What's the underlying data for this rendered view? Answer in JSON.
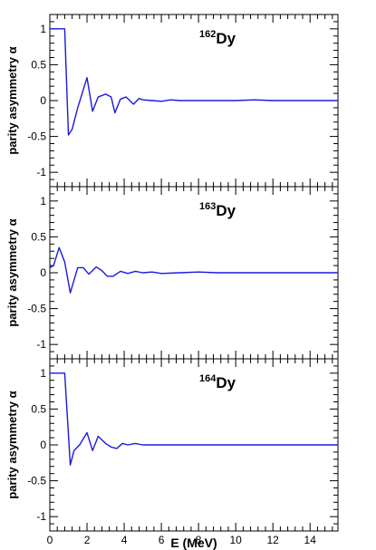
{
  "chart_data": [
    {
      "type": "line",
      "annotation": {
        "mass": "162",
        "symbol": "Dy"
      },
      "ylabel": "parity asymmetry α",
      "xlim": [
        0,
        15.5
      ],
      "ylim": [
        -1.2,
        1.2
      ],
      "yticks": [
        "1",
        "0.5",
        "0",
        "-0.5",
        "-1"
      ],
      "color": "#1a1adc",
      "x": [
        0,
        0.4,
        0.8,
        1.0,
        1.2,
        1.5,
        2.0,
        2.3,
        2.6,
        3.0,
        3.3,
        3.5,
        3.8,
        4.1,
        4.5,
        4.8,
        5.0,
        5.5,
        6.0,
        6.5,
        7.0,
        8.0,
        9.0,
        10.0,
        11.0,
        12.0,
        13.0,
        14.0,
        15.5
      ],
      "y": [
        1.0,
        1.0,
        1.0,
        -0.48,
        -0.4,
        -0.1,
        0.32,
        -0.15,
        0.05,
        0.09,
        0.05,
        -0.17,
        0.02,
        0.05,
        -0.05,
        0.03,
        0.01,
        0.0,
        -0.01,
        0.01,
        0.0,
        0.0,
        0.0,
        0.0,
        0.01,
        0.0,
        0.0,
        0.0,
        0.0
      ]
    },
    {
      "type": "line",
      "annotation": {
        "mass": "163",
        "symbol": "Dy"
      },
      "ylabel": "parity asymmetry α",
      "xlim": [
        0,
        15.5
      ],
      "ylim": [
        -1.2,
        1.2
      ],
      "yticks": [
        "1",
        "0.5",
        "0",
        "-0.5",
        "-1"
      ],
      "color": "#1a1adc",
      "x": [
        0,
        0.2,
        0.5,
        0.8,
        1.1,
        1.5,
        1.8,
        2.1,
        2.5,
        2.8,
        3.1,
        3.4,
        3.8,
        4.2,
        4.6,
        5.0,
        5.5,
        6.0,
        7.0,
        8.0,
        9.0,
        10.0,
        11.0,
        12.0,
        13.0,
        14.0,
        15.5
      ],
      "y": [
        0.07,
        0.1,
        0.35,
        0.15,
        -0.28,
        0.07,
        0.07,
        -0.02,
        0.08,
        0.03,
        -0.05,
        -0.05,
        0.02,
        -0.01,
        0.02,
        0.0,
        0.01,
        -0.01,
        0.0,
        0.01,
        0.0,
        0.0,
        0.0,
        0.0,
        0.0,
        0.0,
        0.0
      ]
    },
    {
      "type": "line",
      "annotation": {
        "mass": "164",
        "symbol": "Dy"
      },
      "ylabel": "parity asymmetry α",
      "xlabel": "E (MeV)",
      "xlim": [
        0,
        15.5
      ],
      "ylim": [
        -1.2,
        1.2
      ],
      "yticks": [
        "1",
        "0.5",
        "0",
        "-0.5",
        "-1"
      ],
      "xticks": [
        "0",
        "2",
        "4",
        "6",
        "8",
        "10",
        "12",
        "14"
      ],
      "color": "#1a1adc",
      "x": [
        0,
        0.4,
        0.8,
        1.1,
        1.3,
        1.6,
        2.0,
        2.3,
        2.6,
        3.0,
        3.3,
        3.6,
        3.9,
        4.2,
        4.6,
        5.0,
        5.5,
        6.0,
        7.0,
        8.0,
        9.0,
        10.0,
        11.0,
        12.0,
        13.0,
        14.0,
        15.5
      ],
      "y": [
        1.0,
        1.0,
        1.0,
        -0.28,
        -0.08,
        0.0,
        0.17,
        -0.08,
        0.12,
        0.02,
        -0.03,
        -0.05,
        0.02,
        0.0,
        0.02,
        0.0,
        0.0,
        0.0,
        0.0,
        0.0,
        0.0,
        0.0,
        0.0,
        0.0,
        0.0,
        0.0,
        0.0
      ]
    }
  ]
}
